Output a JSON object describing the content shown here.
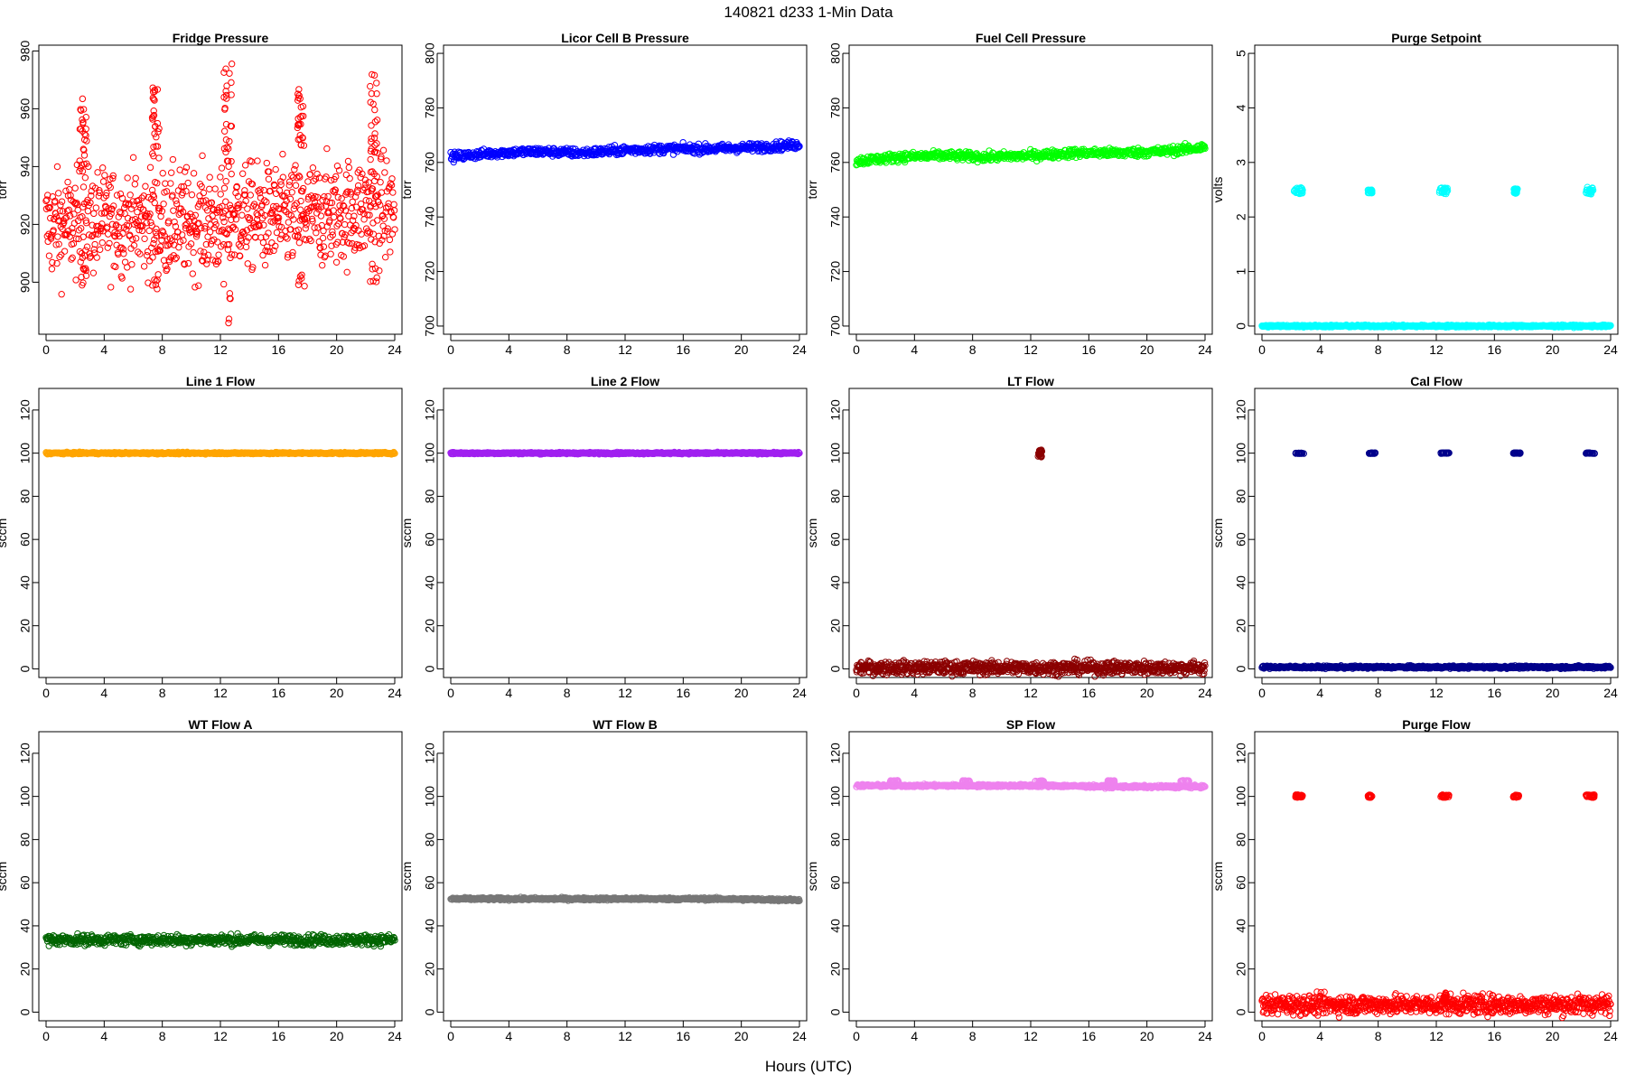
{
  "figure": {
    "title": "140821    d233    1-Min Data",
    "xlabel": "Hours (UTC)"
  },
  "chart_data": [
    {
      "type": "scatter",
      "title": "Fridge Pressure",
      "ylabel": "torr",
      "ylim": [
        882,
        982
      ],
      "yticks": [
        900,
        920,
        940,
        960,
        980
      ],
      "xlim": [
        0,
        24
      ],
      "xticks": [
        0,
        4,
        8,
        12,
        16,
        20,
        24
      ],
      "series": [
        {
          "color": "#ff0000",
          "marker": "open-circle",
          "baseline": [
            [
              0,
              919
            ],
            [
              2,
              920
            ],
            [
              4,
              921
            ],
            [
              6,
              921
            ],
            [
              8,
              920
            ],
            [
              10,
              921
            ],
            [
              12,
              920
            ],
            [
              13,
              923
            ],
            [
              16,
              922
            ],
            [
              18,
              923
            ],
            [
              20,
              924
            ],
            [
              22,
              925
            ],
            [
              24,
              925
            ]
          ],
          "scatter_spread": 9,
          "spikes": [
            {
              "x": [
                2.3,
                2.8
              ],
              "y": [
                932,
                964
              ],
              "low": [
                898,
                905
              ]
            },
            {
              "x": [
                7.3,
                7.8
              ],
              "y": [
                942,
                968
              ],
              "low": [
                896,
                903
              ]
            },
            {
              "x": [
                12.2,
                12.8
              ],
              "y": [
                940,
                978
              ],
              "low": [
                884,
                902
              ]
            },
            {
              "x": [
                17.3,
                17.8
              ],
              "y": [
                945,
                968
              ],
              "low": [
                898,
                903
              ]
            },
            {
              "x": [
                22.3,
                22.8
              ],
              "y": [
                938,
                972
              ],
              "low": [
                900,
                906
              ]
            }
          ]
        }
      ]
    },
    {
      "type": "scatter",
      "title": "Licor Cell B Pressure",
      "ylabel": "torr",
      "ylim": [
        697,
        803
      ],
      "yticks": [
        700,
        720,
        740,
        760,
        780,
        800
      ],
      "xlim": [
        0,
        24
      ],
      "xticks": [
        0,
        4,
        8,
        12,
        16,
        20,
        24
      ],
      "series": [
        {
          "color": "#0000ff",
          "marker": "open-circle",
          "baseline": [
            [
              0,
              762
            ],
            [
              3,
              763.5
            ],
            [
              6,
              764
            ],
            [
              9,
              763.5
            ],
            [
              12,
              764.5
            ],
            [
              15,
              765
            ],
            [
              18,
              765
            ],
            [
              21,
              765.5
            ],
            [
              24,
              766.5
            ]
          ],
          "scatter_spread": 0.8
        }
      ]
    },
    {
      "type": "scatter",
      "title": "Fuel Cell Pressure",
      "ylabel": "torr",
      "ylim": [
        697,
        803
      ],
      "yticks": [
        700,
        720,
        740,
        760,
        780,
        800
      ],
      "xlim": [
        0,
        24
      ],
      "xticks": [
        0,
        4,
        8,
        12,
        16,
        20,
        24
      ],
      "series": [
        {
          "color": "#00ff00",
          "marker": "open-circle",
          "baseline": [
            [
              0,
              760.5
            ],
            [
              3,
              762
            ],
            [
              6,
              762.5
            ],
            [
              9,
              762
            ],
            [
              12,
              762.5
            ],
            [
              15,
              763.5
            ],
            [
              18,
              763.5
            ],
            [
              21,
              764
            ],
            [
              24,
              765.5
            ]
          ],
          "scatter_spread": 0.8
        }
      ]
    },
    {
      "type": "scatter",
      "title": "Purge Setpoint",
      "ylabel": "volts",
      "ylim": [
        -0.15,
        5.15
      ],
      "yticks": [
        0,
        1,
        2,
        3,
        4,
        5
      ],
      "xlim": [
        0,
        24
      ],
      "xticks": [
        0,
        4,
        8,
        12,
        16,
        20,
        24
      ],
      "series": [
        {
          "color": "#00ffff",
          "marker": "open-circle",
          "baseline": [
            [
              0,
              0
            ],
            [
              24,
              0
            ]
          ],
          "scatter_spread": 0.01,
          "spikes": [
            {
              "x": [
                2.2,
                2.8
              ],
              "y": [
                2.42,
                2.55
              ]
            },
            {
              "x": [
                7.3,
                7.6
              ],
              "y": [
                2.44,
                2.5
              ]
            },
            {
              "x": [
                12.2,
                12.8
              ],
              "y": [
                2.42,
                2.55
              ]
            },
            {
              "x": [
                17.3,
                17.6
              ],
              "y": [
                2.43,
                2.52
              ]
            },
            {
              "x": [
                22.3,
                22.8
              ],
              "y": [
                2.42,
                2.55
              ]
            }
          ]
        }
      ]
    },
    {
      "type": "scatter",
      "title": "Line 1 Flow",
      "ylabel": "sccm",
      "ylim": [
        -4,
        130
      ],
      "yticks": [
        0,
        20,
        40,
        60,
        80,
        100,
        120
      ],
      "xlim": [
        0,
        24
      ],
      "xticks": [
        0,
        4,
        8,
        12,
        16,
        20,
        24
      ],
      "series": [
        {
          "color": "#ffa500",
          "marker": "open-circle",
          "baseline": [
            [
              0,
              100
            ],
            [
              24,
              100
            ]
          ],
          "scatter_spread": 0.2
        }
      ]
    },
    {
      "type": "scatter",
      "title": "Line 2 Flow",
      "ylabel": "sccm",
      "ylim": [
        -4,
        130
      ],
      "yticks": [
        0,
        20,
        40,
        60,
        80,
        100,
        120
      ],
      "xlim": [
        0,
        24
      ],
      "xticks": [
        0,
        4,
        8,
        12,
        16,
        20,
        24
      ],
      "series": [
        {
          "color": "#a020f0",
          "marker": "open-circle",
          "baseline": [
            [
              0,
              100
            ],
            [
              24,
              100
            ]
          ],
          "scatter_spread": 0.2
        }
      ]
    },
    {
      "type": "scatter",
      "title": "LT Flow",
      "ylabel": "sccm",
      "ylim": [
        -4,
        130
      ],
      "yticks": [
        0,
        20,
        40,
        60,
        80,
        100,
        120
      ],
      "xlim": [
        0,
        24
      ],
      "xticks": [
        0,
        4,
        8,
        12,
        16,
        20,
        24
      ],
      "series": [
        {
          "color": "#8b0000",
          "marker": "open-circle",
          "baseline": [
            [
              0,
              0.5
            ],
            [
              24,
              0.5
            ]
          ],
          "scatter_spread": 1.5,
          "spikes": [
            {
              "x": [
                12.5,
                12.8
              ],
              "y": [
                98,
                101.5
              ]
            }
          ]
        }
      ]
    },
    {
      "type": "scatter",
      "title": "Cal Flow",
      "ylabel": "sccm",
      "ylim": [
        -4,
        130
      ],
      "yticks": [
        0,
        20,
        40,
        60,
        80,
        100,
        120
      ],
      "xlim": [
        0,
        24
      ],
      "xticks": [
        0,
        4,
        8,
        12,
        16,
        20,
        24
      ],
      "series": [
        {
          "color": "#00008b",
          "marker": "open-circle",
          "baseline": [
            [
              0,
              0.8
            ],
            [
              24,
              0.8
            ]
          ],
          "scatter_spread": 0.3,
          "spikes": [
            {
              "x": [
                2.3,
                2.9
              ],
              "y": [
                99.8,
                100.2
              ]
            },
            {
              "x": [
                7.3,
                7.8
              ],
              "y": [
                99.8,
                100.2
              ]
            },
            {
              "x": [
                12.3,
                12.9
              ],
              "y": [
                99.8,
                100.2
              ]
            },
            {
              "x": [
                17.3,
                17.8
              ],
              "y": [
                99.8,
                100.2
              ]
            },
            {
              "x": [
                22.3,
                22.9
              ],
              "y": [
                99.8,
                100.2
              ]
            }
          ]
        }
      ]
    },
    {
      "type": "scatter",
      "title": "WT Flow A",
      "ylabel": "sccm",
      "ylim": [
        -4,
        130
      ],
      "yticks": [
        0,
        20,
        40,
        60,
        80,
        100,
        120
      ],
      "xlim": [
        0,
        24
      ],
      "xticks": [
        0,
        4,
        8,
        12,
        16,
        20,
        24
      ],
      "series": [
        {
          "color": "#006400",
          "marker": "open-circle",
          "baseline": [
            [
              0,
              33.5
            ],
            [
              24,
              33.5
            ]
          ],
          "scatter_spread": 1.2
        }
      ]
    },
    {
      "type": "scatter",
      "title": "WT Flow B",
      "ylabel": "sccm",
      "ylim": [
        -4,
        130
      ],
      "yticks": [
        0,
        20,
        40,
        60,
        80,
        100,
        120
      ],
      "xlim": [
        0,
        24
      ],
      "xticks": [
        0,
        4,
        8,
        12,
        16,
        20,
        24
      ],
      "series": [
        {
          "color": "#777777",
          "marker": "open-circle",
          "baseline": [
            [
              0,
              52.5
            ],
            [
              18,
              52.5
            ],
            [
              24,
              52
            ]
          ],
          "scatter_spread": 0.3
        }
      ]
    },
    {
      "type": "scatter",
      "title": "SP Flow",
      "ylabel": "sccm",
      "ylim": [
        -4,
        130
      ],
      "yticks": [
        0,
        20,
        40,
        60,
        80,
        100,
        120
      ],
      "xlim": [
        0,
        24
      ],
      "xticks": [
        0,
        4,
        8,
        12,
        16,
        20,
        24
      ],
      "series": [
        {
          "color": "#ee82ee",
          "marker": "open-circle",
          "baseline": [
            [
              0,
              105
            ],
            [
              12,
              105
            ],
            [
              13,
              105
            ],
            [
              18,
              104.5
            ],
            [
              24,
              104.5
            ]
          ],
          "scatter_spread": 0.3,
          "spikes": [
            {
              "x": [
                2.3,
                2.9
              ],
              "y": [
                106.8,
                107.4
              ]
            },
            {
              "x": [
                7.3,
                7.8
              ],
              "y": [
                106.8,
                107.4
              ]
            },
            {
              "x": [
                12.3,
                12.9
              ],
              "y": [
                106.8,
                107.4
              ]
            },
            {
              "x": [
                17.3,
                17.8
              ],
              "y": [
                106.8,
                107.4
              ]
            },
            {
              "x": [
                22.3,
                22.9
              ],
              "y": [
                106.8,
                107.4
              ]
            }
          ]
        }
      ]
    },
    {
      "type": "scatter",
      "title": "Purge Flow",
      "ylabel": "sccm",
      "ylim": [
        -4,
        130
      ],
      "yticks": [
        0,
        20,
        40,
        60,
        80,
        100,
        120
      ],
      "xlim": [
        0,
        24
      ],
      "xticks": [
        0,
        4,
        8,
        12,
        16,
        20,
        24
      ],
      "series": [
        {
          "color": "#ff0000",
          "marker": "open-circle",
          "baseline": [
            [
              0,
              3.5
            ],
            [
              24,
              3.5
            ]
          ],
          "scatter_spread": 2.2,
          "spikes": [
            {
              "x": [
                2.3,
                2.8
              ],
              "y": [
                99.5,
                100.8
              ]
            },
            {
              "x": [
                7.3,
                7.6
              ],
              "y": [
                99.5,
                100.8
              ]
            },
            {
              "x": [
                12.3,
                12.9
              ],
              "y": [
                99.5,
                100.8
              ]
            },
            {
              "x": [
                17.3,
                17.7
              ],
              "y": [
                99.5,
                100.8
              ]
            },
            {
              "x": [
                22.3,
                22.9
              ],
              "y": [
                99.5,
                100.8
              ]
            },
            {
              "x": [
                12.5,
                12.7
              ],
              "y": [
                5,
                9
              ]
            }
          ]
        }
      ]
    }
  ]
}
